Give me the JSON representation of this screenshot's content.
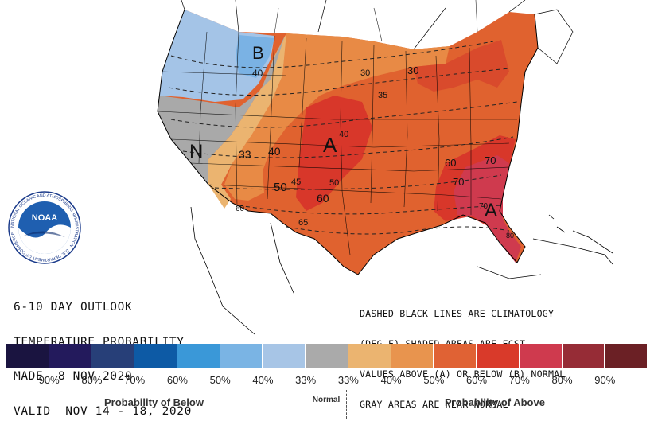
{
  "outlook": {
    "title_lines": [
      "6-10 DAY OUTLOOK",
      "TEMPERATURE PROBABILITY",
      "MADE  8 NOV 2020",
      "VALID  NOV 14 - 18, 2020"
    ]
  },
  "notes": {
    "lines": [
      "DASHED BLACK LINES ARE CLIMATOLOGY",
      "(DEG F) SHADED AREAS ARE FCST",
      "VALUES ABOVE (A) OR BELOW (B) NORMAL",
      "GRAY AREAS ARE NEAR-NORMAL"
    ]
  },
  "logo": {
    "text": "NOAA",
    "ring_text": "NATIONAL OCEANIC AND ATMOSPHERIC ADMINISTRATION · U.S. DEPARTMENT OF COMMERCE"
  },
  "map_labels": {
    "below_marker": "B",
    "normal_marker": "N",
    "above_marker_central": "A",
    "above_marker_southeast": "A",
    "climatology": [
      "40",
      "30",
      "30",
      "35",
      "33",
      "40",
      "40",
      "45",
      "50",
      "50",
      "60",
      "60",
      "65",
      "60",
      "70",
      "70",
      "70",
      "80"
    ]
  },
  "legend": {
    "colors": [
      "#1a1440",
      "#231a5c",
      "#273f78",
      "#0d5aa5",
      "#3a98d8",
      "#7ab4e4",
      "#a7c5e6",
      "#aaaaaa",
      "#ebb470",
      "#e8944e",
      "#e06234",
      "#d93a2a",
      "#cf3a4e",
      "#962c36",
      "#6b2025"
    ],
    "tick_labels": [
      "90%",
      "80%",
      "70%",
      "60%",
      "50%",
      "40%",
      "33%",
      "33%",
      "40%",
      "50%",
      "60%",
      "70%",
      "80%",
      "90%"
    ],
    "below_caption": "Probability of Below",
    "normal_caption": "Normal",
    "above_caption": "Probability of Above"
  }
}
